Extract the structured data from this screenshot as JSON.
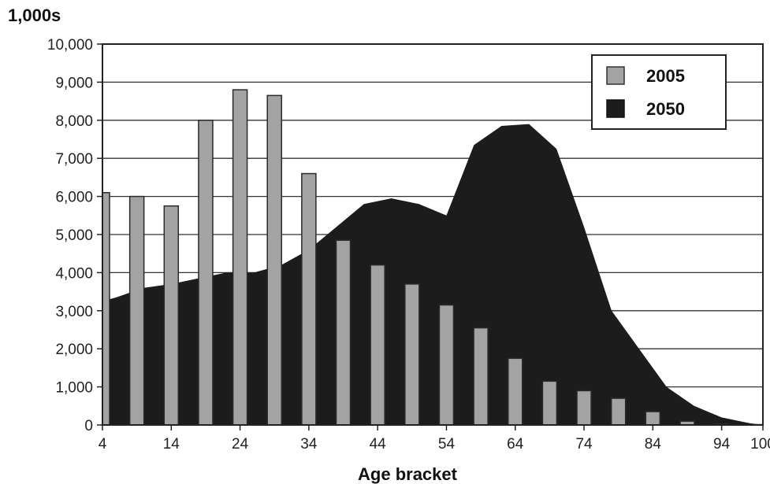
{
  "chart_data": {
    "type": "bar",
    "ylabel": "1,000s",
    "xlabel": "Age bracket",
    "ylim": [
      0,
      10000
    ],
    "yticks": [
      "0",
      "1,000",
      "2,000",
      "3,000",
      "4,000",
      "5,000",
      "6,000",
      "7,000",
      "8,000",
      "9,000",
      "10,000"
    ],
    "xticks": [
      "4",
      "14",
      "24",
      "34",
      "44",
      "54",
      "64",
      "74",
      "84",
      "94",
      "100"
    ],
    "grid": "horizontal",
    "legend_position": "top-right",
    "series": [
      {
        "name": "2005",
        "type": "bar",
        "color": "#a3a3a3",
        "x": [
          4,
          9,
          14,
          19,
          24,
          29,
          34,
          39,
          44,
          49,
          54,
          59,
          64,
          69,
          74,
          79,
          84,
          89,
          94,
          99
        ],
        "values": [
          6100,
          6000,
          5750,
          8000,
          8800,
          8650,
          6600,
          4850,
          4200,
          3700,
          3150,
          2550,
          1750,
          1150,
          900,
          700,
          350,
          100,
          30,
          10
        ]
      },
      {
        "name": "2050",
        "type": "area",
        "color": "#1c1c1c",
        "x": [
          4,
          6,
          10,
          14,
          18,
          22,
          26,
          30,
          34,
          38,
          42,
          46,
          50,
          54,
          58,
          62,
          66,
          70,
          74,
          78,
          82,
          86,
          90,
          94,
          98,
          100
        ],
        "values": [
          3250,
          3350,
          3600,
          3700,
          3850,
          4000,
          4000,
          4200,
          4600,
          5200,
          5800,
          5950,
          5800,
          5500,
          7350,
          7850,
          7900,
          7250,
          5200,
          3000,
          2000,
          1000,
          500,
          200,
          50,
          0
        ]
      }
    ]
  }
}
